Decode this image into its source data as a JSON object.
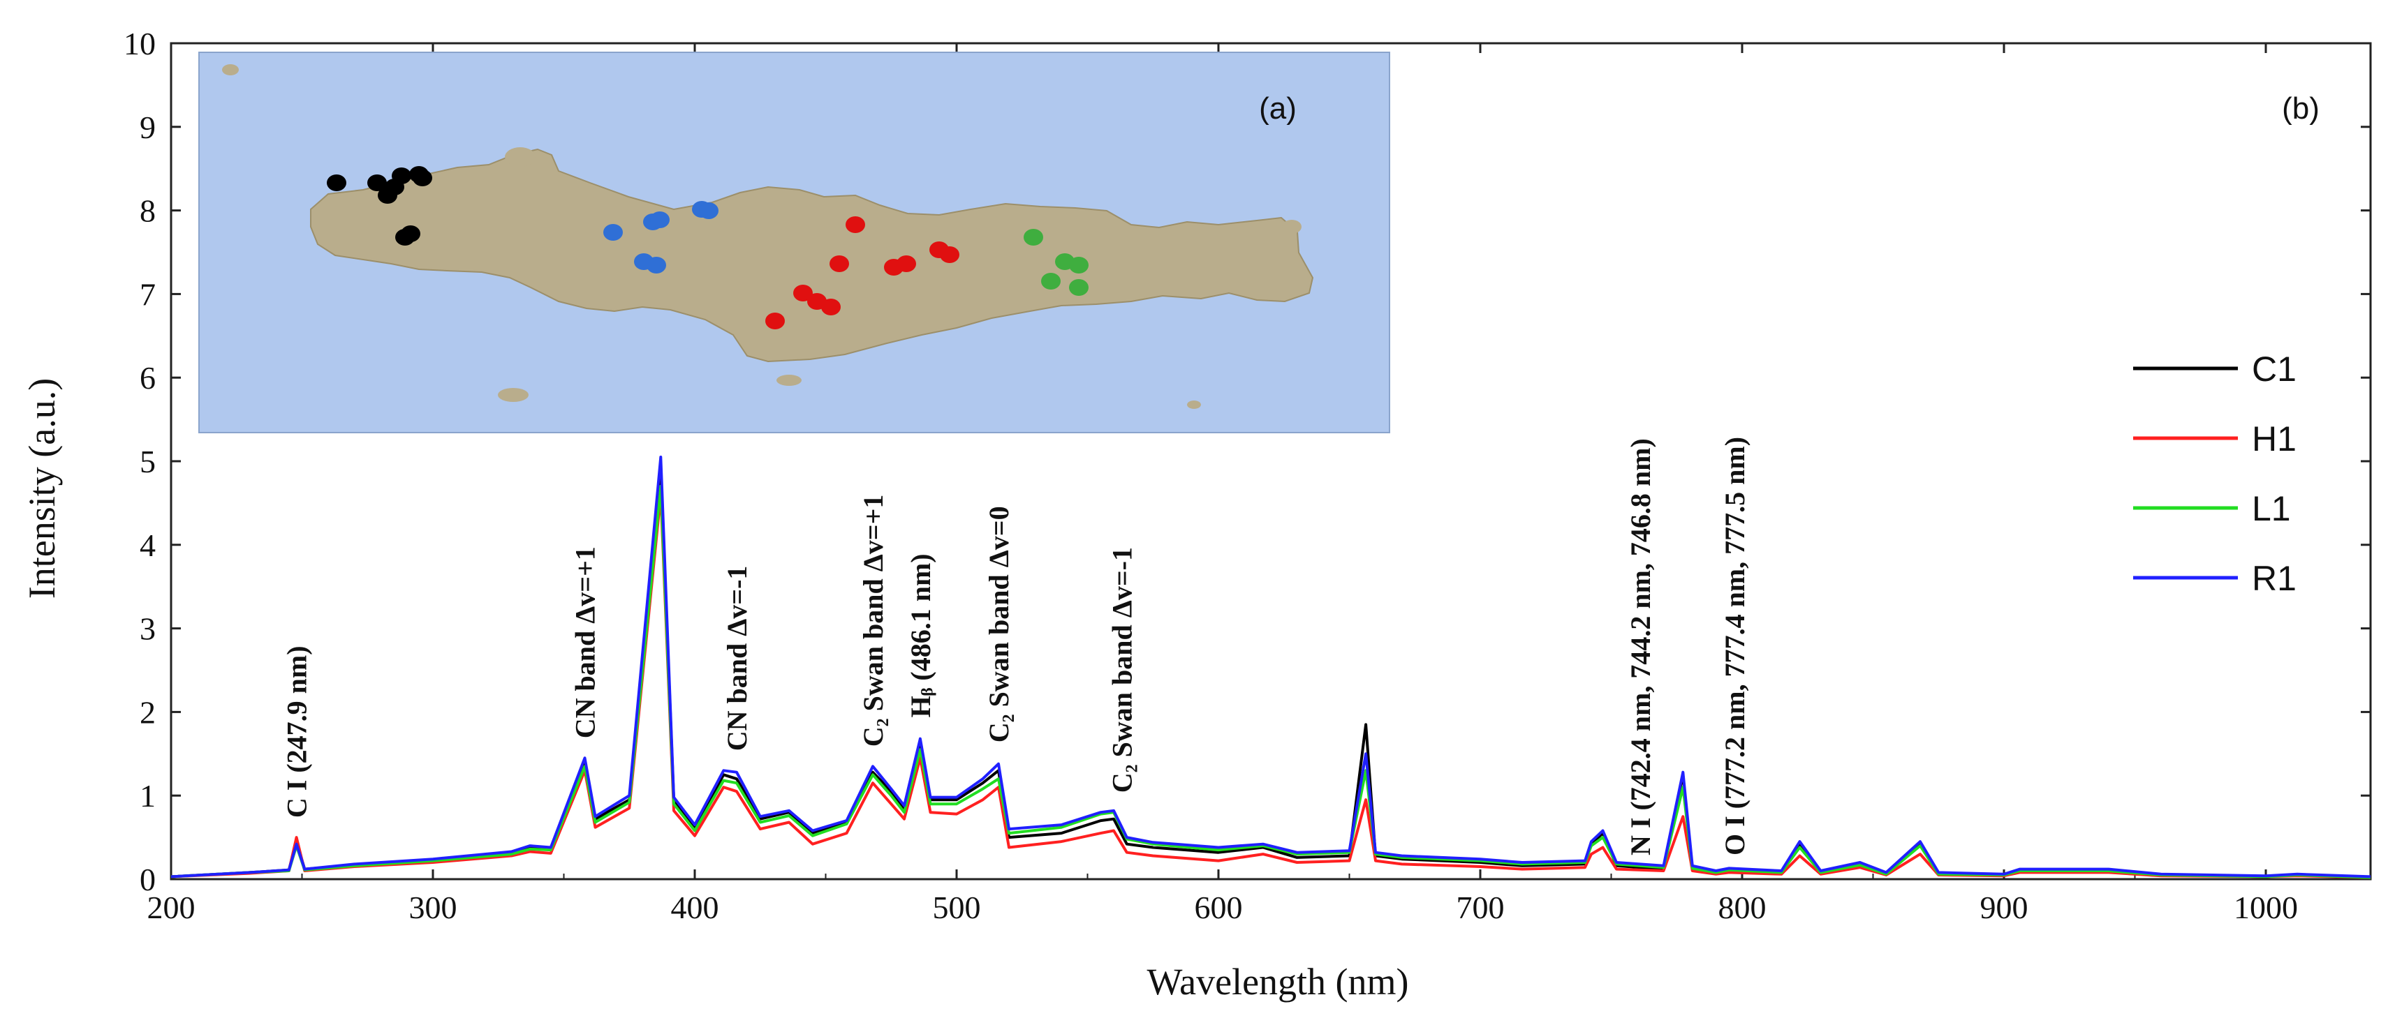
{
  "chart_data": {
    "type": "line",
    "title": "",
    "xlabel": "Wavelength (nm)",
    "ylabel": "Intensity (a.u.)",
    "xlim": [
      200,
      1040
    ],
    "ylim": [
      0,
      10
    ],
    "xticks": [
      200,
      300,
      400,
      500,
      600,
      700,
      800,
      900,
      1000
    ],
    "xtick_labels": [
      "200",
      "300",
      "400",
      "500",
      "600",
      "700",
      "800",
      "900",
      "1000"
    ],
    "yticks": [
      0,
      1,
      2,
      3,
      4,
      5,
      6,
      7,
      8,
      9,
      10
    ],
    "ytick_labels": [
      "0",
      "1",
      "2",
      "3",
      "4",
      "5",
      "6",
      "7",
      "8",
      "9",
      "10"
    ],
    "panel_label": "(b)",
    "legend_position": "right",
    "x": [
      200,
      230,
      245,
      247.9,
      251,
      270,
      300,
      330,
      337,
      345,
      358,
      362,
      375,
      387,
      392,
      400,
      411,
      416,
      425,
      436,
      445,
      458,
      468,
      475,
      480,
      486.1,
      490,
      500,
      510,
      516,
      520,
      540,
      555,
      560,
      565,
      575,
      600,
      617,
      630,
      650,
      656.3,
      660,
      670,
      700,
      716,
      740,
      742.4,
      746.8,
      752,
      770,
      777.4,
      781,
      790,
      795,
      815,
      822,
      830,
      845,
      855,
      868,
      875,
      900,
      906,
      928,
      940,
      960,
      1000,
      1012,
      1040
    ],
    "series": [
      {
        "name": "C1",
        "color": "#000000",
        "values": [
          0.03,
          0.08,
          0.11,
          0.45,
          0.12,
          0.17,
          0.22,
          0.32,
          0.38,
          0.36,
          1.4,
          0.72,
          0.95,
          4.9,
          0.95,
          0.62,
          1.25,
          1.2,
          0.72,
          0.8,
          0.55,
          0.68,
          1.28,
          1.05,
          0.85,
          1.62,
          0.95,
          0.95,
          1.15,
          1.3,
          0.5,
          0.55,
          0.7,
          0.72,
          0.42,
          0.38,
          0.32,
          0.38,
          0.26,
          0.28,
          1.85,
          0.28,
          0.24,
          0.2,
          0.16,
          0.18,
          0.42,
          0.55,
          0.16,
          0.12,
          1.25,
          0.12,
          0.08,
          0.1,
          0.08,
          0.42,
          0.08,
          0.18,
          0.06,
          0.42,
          0.06,
          0.05,
          0.1,
          0.1,
          0.1,
          0.05,
          0.03,
          0.05,
          0.02
        ]
      },
      {
        "name": "H1",
        "color": "#ff2020",
        "values": [
          0.03,
          0.07,
          0.1,
          0.5,
          0.1,
          0.15,
          0.2,
          0.28,
          0.33,
          0.31,
          1.3,
          0.62,
          0.85,
          4.6,
          0.82,
          0.52,
          1.1,
          1.05,
          0.6,
          0.68,
          0.42,
          0.55,
          1.15,
          0.9,
          0.72,
          1.45,
          0.8,
          0.78,
          0.95,
          1.1,
          0.38,
          0.45,
          0.55,
          0.58,
          0.32,
          0.28,
          0.22,
          0.3,
          0.2,
          0.22,
          0.95,
          0.22,
          0.18,
          0.15,
          0.12,
          0.14,
          0.3,
          0.38,
          0.12,
          0.1,
          0.75,
          0.1,
          0.06,
          0.08,
          0.06,
          0.28,
          0.06,
          0.14,
          0.05,
          0.3,
          0.05,
          0.04,
          0.08,
          0.08,
          0.08,
          0.04,
          0.03,
          0.04,
          0.02
        ]
      },
      {
        "name": "L1",
        "color": "#22dd22",
        "values": [
          0.03,
          0.08,
          0.1,
          0.4,
          0.11,
          0.16,
          0.22,
          0.3,
          0.36,
          0.35,
          1.35,
          0.68,
          0.92,
          4.7,
          0.9,
          0.58,
          1.18,
          1.15,
          0.68,
          0.76,
          0.52,
          0.66,
          1.25,
          1.0,
          0.8,
          1.55,
          0.9,
          0.9,
          1.08,
          1.2,
          0.55,
          0.62,
          0.78,
          0.8,
          0.48,
          0.42,
          0.35,
          0.4,
          0.3,
          0.32,
          1.3,
          0.3,
          0.26,
          0.22,
          0.18,
          0.2,
          0.4,
          0.5,
          0.18,
          0.14,
          1.1,
          0.13,
          0.08,
          0.11,
          0.08,
          0.38,
          0.08,
          0.17,
          0.06,
          0.4,
          0.06,
          0.05,
          0.1,
          0.1,
          0.1,
          0.05,
          0.03,
          0.05,
          0.02
        ]
      },
      {
        "name": "R1",
        "color": "#2020ff",
        "values": [
          0.03,
          0.08,
          0.11,
          0.42,
          0.12,
          0.18,
          0.24,
          0.33,
          0.4,
          0.38,
          1.45,
          0.75,
          1.0,
          5.05,
          0.98,
          0.65,
          1.3,
          1.28,
          0.75,
          0.82,
          0.58,
          0.7,
          1.35,
          1.08,
          0.88,
          1.68,
          0.98,
          0.98,
          1.2,
          1.38,
          0.6,
          0.65,
          0.8,
          0.82,
          0.5,
          0.44,
          0.38,
          0.42,
          0.32,
          0.34,
          1.5,
          0.32,
          0.28,
          0.24,
          0.2,
          0.22,
          0.45,
          0.58,
          0.2,
          0.16,
          1.28,
          0.16,
          0.1,
          0.13,
          0.1,
          0.45,
          0.1,
          0.2,
          0.08,
          0.45,
          0.08,
          0.06,
          0.12,
          0.12,
          0.12,
          0.06,
          0.04,
          0.06,
          0.03
        ]
      }
    ],
    "annotations": [
      {
        "id": "ci",
        "text": "C I (247.9 nm)",
        "x": 247.9,
        "y": 0.65
      },
      {
        "id": "cn1",
        "text": "CN band Δv=+1",
        "x": 358,
        "y": 1.6
      },
      {
        "id": "cn2",
        "text": "CN band Δv=-1",
        "x": 416,
        "y": 1.45
      },
      {
        "id": "c2a",
        "text": "C₂ Swan band Δv=+1",
        "x": 468,
        "y": 1.5
      },
      {
        "id": "hb",
        "text": "Hᵦ (486.1 nm)",
        "x": 486.1,
        "y": 1.85
      },
      {
        "id": "c2b",
        "text": "C₂ Swan band Δv=0",
        "x": 516,
        "y": 1.55
      },
      {
        "id": "c2c",
        "text": "C₂ Swan band Δv=-1",
        "x": 563,
        "y": 0.95
      },
      {
        "id": "ni",
        "text": "N I (742.4 nm, 744.2 nm, 746.8 nm)",
        "x": 761,
        "y": 0.2
      },
      {
        "id": "oi",
        "text": "O I (777.2 nm, 777.4 nm, 777.5 nm)",
        "x": 797,
        "y": 0.2
      }
    ],
    "inset": {
      "panel_label": "(a)",
      "description_free": true,
      "cluster_colors": [
        "#000000",
        "#2f6fd6",
        "#e01010",
        "#3fae3f"
      ]
    }
  }
}
